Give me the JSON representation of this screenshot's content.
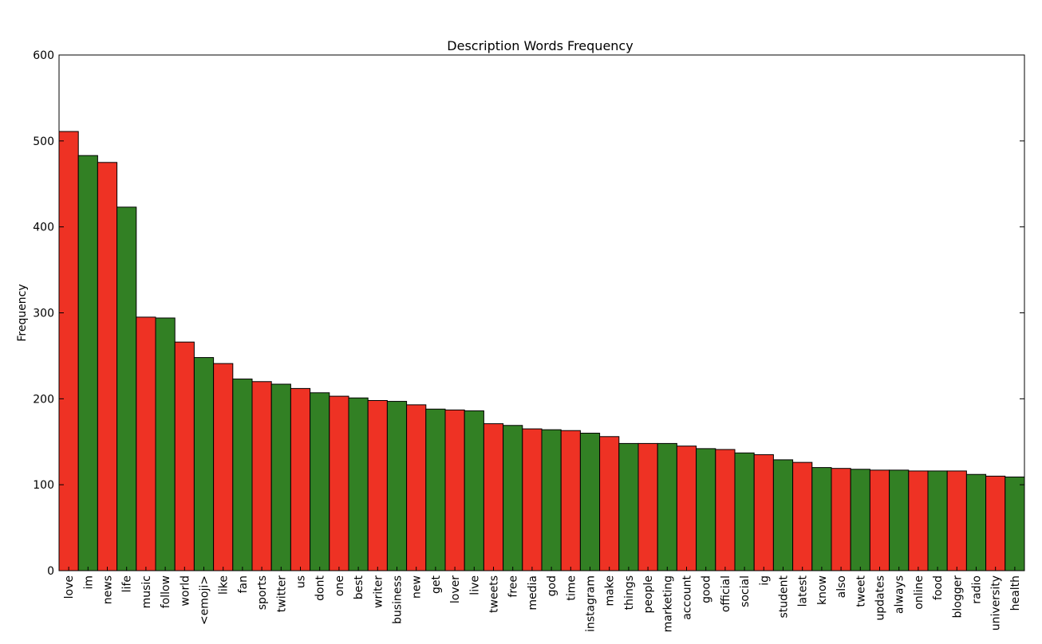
{
  "chart_data": {
    "type": "bar",
    "title": "Description Words Frequency",
    "xlabel": "",
    "ylabel": "Frequency",
    "ylim": [
      0,
      600
    ],
    "yticks": [
      0,
      100,
      200,
      300,
      400,
      500,
      600
    ],
    "grid": false,
    "legend": "none",
    "bar_colors": [
      "#ee3224",
      "#328024"
    ],
    "edge_color": "#000000",
    "categories": [
      "love",
      "im",
      "news",
      "life",
      "music",
      "follow",
      "world",
      "<emoji>",
      "like",
      "fan",
      "sports",
      "twitter",
      "us",
      "dont",
      "one",
      "best",
      "writer",
      "business",
      "new",
      "get",
      "lover",
      "live",
      "tweets",
      "free",
      "media",
      "god",
      "time",
      "instagram",
      "make",
      "things",
      "people",
      "marketing",
      "account",
      "good",
      "official",
      "social",
      "ig",
      "student",
      "latest",
      "know",
      "also",
      "tweet",
      "updates",
      "always",
      "online",
      "food",
      "blogger",
      "radio",
      "university",
      "health"
    ],
    "values": [
      511,
      483,
      475,
      423,
      295,
      294,
      266,
      248,
      241,
      223,
      220,
      217,
      212,
      207,
      203,
      201,
      198,
      197,
      193,
      188,
      187,
      186,
      171,
      169,
      165,
      164,
      163,
      160,
      156,
      148,
      148,
      148,
      145,
      142,
      141,
      137,
      135,
      129,
      126,
      120,
      119,
      118,
      117,
      117,
      116,
      116,
      116,
      112,
      110,
      109
    ]
  }
}
